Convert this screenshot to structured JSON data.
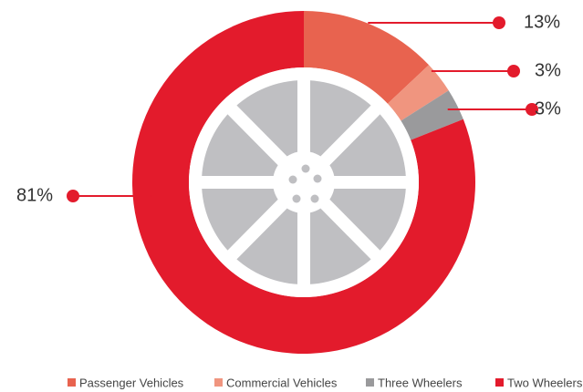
{
  "chart_data": {
    "type": "donut",
    "categories": [
      "Passenger Vehicles",
      "Commercial Vehicles",
      "Three Wheelers",
      "Two Wheelers"
    ],
    "values": [
      13,
      3,
      3,
      81
    ],
    "value_labels": [
      "13%",
      "3%",
      "3%",
      "81%"
    ],
    "colors": [
      "#e8634f",
      "#f0957f",
      "#9a9a9c",
      "#e31b2c"
    ]
  }
}
